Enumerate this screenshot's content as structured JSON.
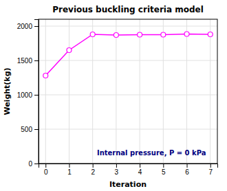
{
  "chart_data": {
    "type": "line",
    "title": "Previous buckling criteria model",
    "xlabel": "Iteration",
    "ylabel": "Weight(kg)",
    "x": [
      0,
      1,
      2,
      3,
      4,
      5,
      6,
      7
    ],
    "values": [
      1280,
      1650,
      1880,
      1870,
      1875,
      1875,
      1885,
      1880
    ],
    "color": "#FF00FF",
    "marker": "circle",
    "xlim": [
      -0.3,
      7.3
    ],
    "ylim": [
      0,
      2100
    ],
    "xticks": [
      0,
      1,
      2,
      3,
      4,
      5,
      6,
      7
    ],
    "yticks": [
      0,
      500,
      1000,
      1500,
      2000
    ],
    "grid": true,
    "annotations": [
      {
        "text": "Internal pressure, P = 0 kPa",
        "x": 4.5,
        "y": 120,
        "color": "#000080"
      }
    ]
  }
}
